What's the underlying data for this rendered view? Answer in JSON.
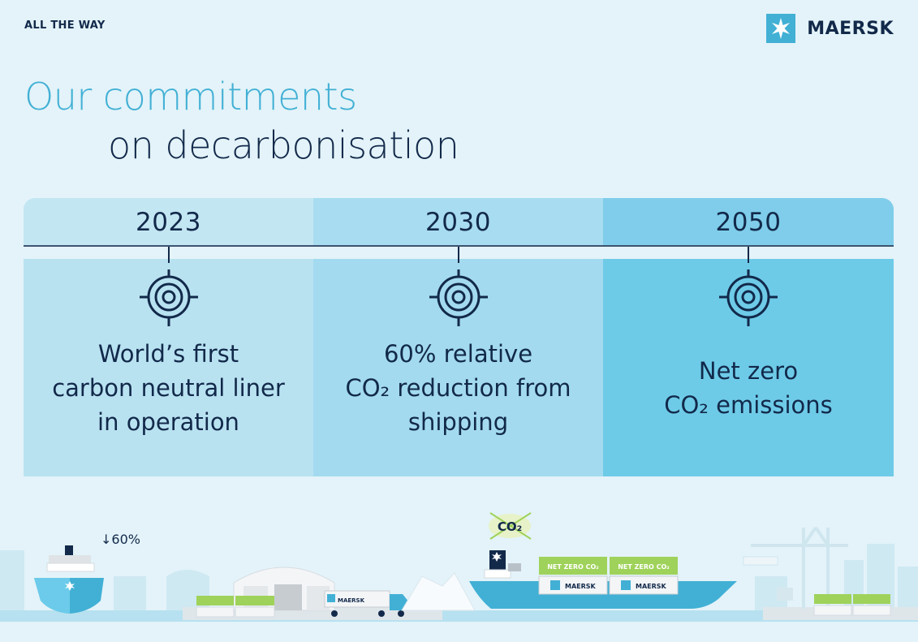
{
  "header": {
    "tagline": "ALL THE WAY",
    "brand_name": "MAERSK",
    "brand_icon": "star-icon"
  },
  "title": {
    "line1": "Our commitments",
    "line2": "on decarbonisation"
  },
  "milestones": [
    {
      "year": "2023",
      "lines": [
        "World’s first",
        "carbon neutral liner",
        "in operation"
      ]
    },
    {
      "year": "2030",
      "lines": [
        "60% relative",
        "CO₂ reduction from",
        "shipping"
      ]
    },
    {
      "year": "2050",
      "lines": [
        "Net zero",
        "CO₂ emissions"
      ]
    }
  ],
  "illustration": {
    "ship_label": "↓60%",
    "co2_badge": "CO₂",
    "container_label": "NET ZERO CO₂",
    "container_brand": "MAERSK",
    "truck_brand": "MAERSK"
  },
  "colors": {
    "accent": "#42b0d5",
    "navy": "#12294a",
    "background": "#e3f3f9",
    "col1": "#b9e2f1",
    "col2": "#a3daef",
    "col3": "#6ecbe8",
    "green": "#9fd25a"
  }
}
